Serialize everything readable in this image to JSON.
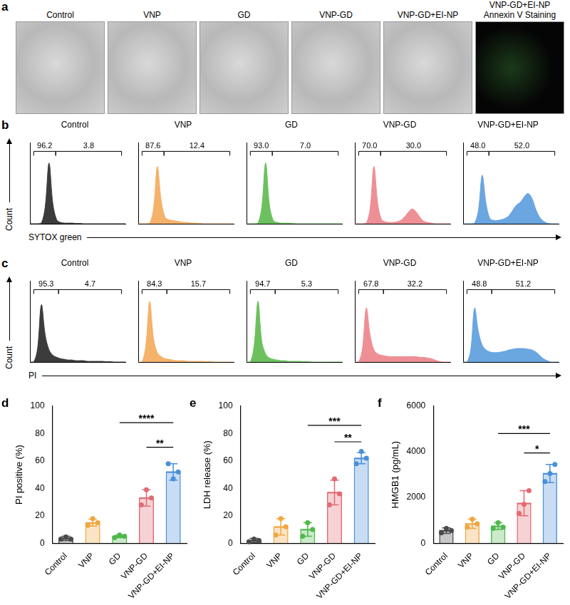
{
  "images": {
    "panel": "a",
    "titles": [
      [
        "Control"
      ],
      [
        "VNP"
      ],
      [
        "GD"
      ],
      [
        "VNP-GD"
      ],
      [
        "VNP-GD+EI-NP"
      ],
      [
        "VNP-GD+EI-NP",
        "Annexin V Staining"
      ]
    ]
  },
  "histogram_rows": [
    {
      "panel": "b",
      "y_label": "Count",
      "x_label": "SYTOX green"
    },
    {
      "panel": "c",
      "y_label": "Count",
      "x_label": "PI"
    }
  ],
  "chart_data": [
    {
      "type": "area",
      "panel": "b",
      "title": "Control",
      "color": "#3c3c3c",
      "tick_labels": false,
      "xlim": [
        0,
        100
      ],
      "ylim": [
        0,
        120
      ],
      "x": [
        0,
        4,
        8,
        12,
        16,
        20,
        24,
        28,
        32,
        36,
        40,
        44,
        48,
        52,
        56,
        60,
        64,
        68,
        72,
        76,
        80,
        84,
        88,
        92,
        96,
        100
      ],
      "values": [
        0,
        0,
        0,
        1,
        25,
        90,
        30,
        6,
        2,
        1,
        1,
        1,
        0.5,
        0.5,
        0,
        0,
        0,
        0,
        0,
        0,
        0,
        0,
        0,
        0,
        0,
        0
      ],
      "gates": [
        {
          "range": [
            4,
            27
          ],
          "value": 96.2
        },
        {
          "range": [
            27,
            96
          ],
          "value": 3.8
        }
      ]
    },
    {
      "type": "area",
      "panel": "b",
      "title": "VNP",
      "color": "#f5b26b",
      "tick_labels": false,
      "xlim": [
        0,
        100
      ],
      "ylim": [
        0,
        120
      ],
      "x": [
        0,
        4,
        8,
        12,
        16,
        20,
        24,
        28,
        32,
        36,
        40,
        44,
        48,
        52,
        56,
        60,
        64,
        68,
        72,
        76,
        80,
        84,
        88,
        92,
        96,
        100
      ],
      "values": [
        0,
        0,
        0,
        1,
        22,
        85,
        35,
        10,
        6,
        5,
        4,
        3,
        2,
        2,
        1,
        1,
        0.5,
        0,
        0,
        0,
        0,
        0,
        0,
        0,
        0,
        0
      ],
      "gates": [
        {
          "range": [
            4,
            27
          ],
          "value": 87.6
        },
        {
          "range": [
            27,
            96
          ],
          "value": 12.4
        }
      ]
    },
    {
      "type": "area",
      "panel": "b",
      "title": "GD",
      "color": "#6cc15e",
      "tick_labels": false,
      "xlim": [
        0,
        100
      ],
      "ylim": [
        0,
        120
      ],
      "x": [
        0,
        4,
        8,
        12,
        16,
        20,
        24,
        28,
        32,
        36,
        40,
        44,
        48,
        52,
        56,
        60,
        64,
        68,
        72,
        76,
        80,
        84,
        88,
        92,
        96,
        100
      ],
      "values": [
        0,
        0,
        0,
        1,
        25,
        90,
        28,
        5,
        2,
        1,
        1,
        1,
        0.5,
        0,
        0,
        0,
        0,
        0,
        0,
        0,
        0,
        0,
        0,
        0,
        0,
        0
      ],
      "gates": [
        {
          "range": [
            4,
            27
          ],
          "value": 93.0
        },
        {
          "range": [
            27,
            96
          ],
          "value": 7.0
        }
      ]
    },
    {
      "type": "area",
      "panel": "b",
      "title": "VNP-GD",
      "color": "#ee8f96",
      "tick_labels": false,
      "xlim": [
        0,
        100
      ],
      "ylim": [
        0,
        120
      ],
      "x": [
        0,
        4,
        8,
        12,
        16,
        20,
        24,
        28,
        32,
        36,
        40,
        44,
        48,
        52,
        56,
        60,
        64,
        68,
        72,
        76,
        80,
        84,
        88,
        92,
        96,
        100
      ],
      "values": [
        0,
        0,
        0,
        1,
        22,
        85,
        30,
        6,
        3,
        2,
        2,
        3,
        5,
        10,
        17,
        22,
        18,
        10,
        4,
        2,
        1,
        0,
        0,
        0,
        0,
        0
      ],
      "gates": [
        {
          "range": [
            4,
            27
          ],
          "value": 70.0
        },
        {
          "range": [
            27,
            96
          ],
          "value": 30.0
        }
      ]
    },
    {
      "type": "area",
      "panel": "b",
      "title": "VNP-GD+EI-NP",
      "color": "#6aa6e0",
      "tick_labels": false,
      "xlim": [
        0,
        100
      ],
      "ylim": [
        0,
        120
      ],
      "x": [
        0,
        4,
        8,
        12,
        16,
        20,
        24,
        28,
        32,
        36,
        40,
        44,
        48,
        52,
        56,
        60,
        64,
        68,
        72,
        76,
        80,
        84,
        88,
        92,
        96,
        100
      ],
      "values": [
        0,
        0,
        0,
        1,
        20,
        72,
        30,
        8,
        5,
        5,
        6,
        8,
        12,
        20,
        28,
        32,
        40,
        45,
        38,
        22,
        10,
        4,
        1,
        0,
        0,
        0
      ],
      "gates": [
        {
          "range": [
            4,
            27
          ],
          "value": 48.0
        },
        {
          "range": [
            27,
            96
          ],
          "value": 52.0
        }
      ]
    },
    {
      "type": "area",
      "panel": "c",
      "title": "Control",
      "color": "#3c3c3c",
      "tick_labels": false,
      "xlim": [
        0,
        100
      ],
      "ylim": [
        0,
        120
      ],
      "x": [
        0,
        4,
        8,
        12,
        16,
        20,
        24,
        28,
        32,
        36,
        40,
        44,
        48,
        52,
        56,
        60,
        64,
        68,
        72,
        76,
        80,
        84,
        88,
        92,
        96,
        100
      ],
      "values": [
        0,
        0,
        20,
        85,
        40,
        18,
        10,
        7,
        5,
        4,
        3,
        3,
        2,
        2,
        2,
        1,
        1,
        1,
        1,
        1,
        0.5,
        0.5,
        0,
        0,
        0,
        0
      ],
      "gates": [
        {
          "range": [
            4,
            30
          ],
          "value": 95.3
        },
        {
          "range": [
            30,
            96
          ],
          "value": 4.7
        }
      ]
    },
    {
      "type": "area",
      "panel": "c",
      "title": "VNP",
      "color": "#f5b26b",
      "tick_labels": false,
      "xlim": [
        0,
        100
      ],
      "ylim": [
        0,
        120
      ],
      "x": [
        0,
        4,
        8,
        12,
        16,
        20,
        24,
        28,
        32,
        36,
        40,
        44,
        48,
        52,
        56,
        60,
        64,
        68,
        72,
        76,
        80,
        84,
        88,
        92,
        96,
        100
      ],
      "values": [
        0,
        0,
        25,
        90,
        35,
        14,
        8,
        5,
        4,
        3,
        2,
        2,
        2,
        1,
        1,
        1,
        1,
        1,
        0.5,
        0.5,
        0,
        0,
        0,
        0,
        0,
        0
      ],
      "gates": [
        {
          "range": [
            4,
            30
          ],
          "value": 84.3
        },
        {
          "range": [
            30,
            96
          ],
          "value": 15.7
        }
      ]
    },
    {
      "type": "area",
      "panel": "c",
      "title": "GD",
      "color": "#6cc15e",
      "tick_labels": false,
      "xlim": [
        0,
        100
      ],
      "ylim": [
        0,
        120
      ],
      "x": [
        0,
        4,
        8,
        12,
        16,
        20,
        24,
        28,
        32,
        36,
        40,
        44,
        48,
        52,
        56,
        60,
        64,
        68,
        72,
        76,
        80,
        84,
        88,
        92,
        96,
        100
      ],
      "values": [
        0,
        0,
        25,
        90,
        30,
        12,
        6,
        4,
        3,
        2,
        2,
        1,
        1,
        1,
        1,
        0.5,
        0.5,
        0,
        0,
        0,
        0,
        0,
        0,
        0,
        0,
        0
      ],
      "gates": [
        {
          "range": [
            4,
            30
          ],
          "value": 94.7
        },
        {
          "range": [
            30,
            96
          ],
          "value": 5.3
        }
      ]
    },
    {
      "type": "area",
      "panel": "c",
      "title": "VNP-GD",
      "color": "#ee8f96",
      "tick_labels": false,
      "xlim": [
        0,
        100
      ],
      "ylim": [
        0,
        120
      ],
      "x": [
        0,
        4,
        8,
        12,
        16,
        20,
        24,
        28,
        32,
        36,
        40,
        44,
        48,
        52,
        56,
        60,
        64,
        68,
        72,
        76,
        80,
        84,
        88,
        92,
        96,
        100
      ],
      "values": [
        0,
        0,
        20,
        80,
        40,
        18,
        12,
        10,
        9,
        8,
        8,
        8,
        8,
        8,
        8,
        8,
        8,
        7,
        7,
        6,
        5,
        3,
        1,
        0,
        0,
        0
      ],
      "gates": [
        {
          "range": [
            4,
            30
          ],
          "value": 67.8
        },
        {
          "range": [
            30,
            96
          ],
          "value": 32.2
        }
      ]
    },
    {
      "type": "area",
      "panel": "c",
      "title": "VNP-GD+EI-NP",
      "color": "#6aa6e0",
      "tick_labels": false,
      "xlim": [
        0,
        100
      ],
      "ylim": [
        0,
        120
      ],
      "x": [
        0,
        4,
        8,
        12,
        16,
        20,
        24,
        28,
        32,
        36,
        40,
        44,
        48,
        52,
        56,
        60,
        64,
        68,
        72,
        76,
        80,
        84,
        88,
        92,
        96,
        100
      ],
      "values": [
        0,
        0,
        18,
        80,
        45,
        25,
        18,
        15,
        14,
        14,
        15,
        16,
        18,
        19,
        20,
        20,
        20,
        19,
        18,
        15,
        10,
        5,
        2,
        0,
        0,
        0
      ],
      "gates": [
        {
          "range": [
            4,
            30
          ],
          "value": 48.8
        },
        {
          "range": [
            30,
            96
          ],
          "value": 51.2
        }
      ]
    },
    {
      "type": "bar",
      "panel": "d",
      "y_label": "PI positive (%)",
      "categories": [
        "Control",
        "VNP",
        "GD",
        "VNP-GD",
        "VNP-GD+EI-NP"
      ],
      "colors": [
        "#4a4a4a",
        "#f0a640",
        "#4fb84c",
        "#e36a72",
        "#4a90d9"
      ],
      "values": [
        3.5,
        15,
        5,
        33,
        52
      ],
      "errors": [
        1.5,
        2.5,
        1,
        6,
        6
      ],
      "points": [
        [
          3,
          4.5,
          3
        ],
        [
          13,
          18,
          15
        ],
        [
          4,
          6,
          5
        ],
        [
          28,
          39,
          33
        ],
        [
          58,
          47,
          52
        ]
      ],
      "ylim": [
        0,
        100
      ],
      "yticks": [
        0,
        20,
        40,
        60,
        80,
        100
      ],
      "significance": [
        {
          "from": "GD",
          "to": "VNP-GD+EI-NP",
          "y": 88,
          "label": "****"
        },
        {
          "from": "VNP-GD",
          "to": "VNP-GD+EI-NP",
          "y": 70,
          "label": "**"
        }
      ]
    },
    {
      "type": "bar",
      "panel": "e",
      "y_label": "LDH release (%)",
      "categories": [
        "Control",
        "VNP",
        "GD",
        "VNP-GD",
        "VNP-GD+EI-NP"
      ],
      "colors": [
        "#4a4a4a",
        "#f0a640",
        "#4fb84c",
        "#e36a72",
        "#4a90d9"
      ],
      "values": [
        2,
        12,
        10,
        37,
        62
      ],
      "errors": [
        1.5,
        6,
        5,
        9,
        4
      ],
      "points": [
        [
          1,
          3,
          2
        ],
        [
          6,
          18,
          12
        ],
        [
          5,
          15,
          10
        ],
        [
          28,
          47,
          36
        ],
        [
          58,
          67,
          62
        ]
      ],
      "ylim": [
        0,
        100
      ],
      "yticks": [
        0,
        20,
        40,
        60,
        80,
        100
      ],
      "significance": [
        {
          "from": "GD",
          "to": "VNP-GD+EI-NP",
          "y": 86,
          "label": "***"
        },
        {
          "from": "VNP-GD",
          "to": "VNP-GD+EI-NP",
          "y": 74,
          "label": "**"
        }
      ]
    },
    {
      "type": "bar",
      "panel": "f",
      "y_label": "HMGB1 (pg/mL)",
      "categories": [
        "Control",
        "VNP",
        "GD",
        "VNP-GD",
        "VNP-GD+EI-NP"
      ],
      "colors": [
        "#4a4a4a",
        "#f0a640",
        "#4fb84c",
        "#e36a72",
        "#4a90d9"
      ],
      "values": [
        550,
        850,
        750,
        1750,
        3050
      ],
      "errors": [
        120,
        200,
        150,
        550,
        400
      ],
      "points": [
        [
          450,
          650,
          550
        ],
        [
          700,
          1050,
          850
        ],
        [
          650,
          900,
          700
        ],
        [
          1300,
          1700,
          2300
        ],
        [
          2700,
          3050,
          3450
        ]
      ],
      "ylim": [
        0,
        6000
      ],
      "yticks": [
        0,
        2000,
        4000,
        6000
      ],
      "significance": [
        {
          "from": "GD",
          "to": "VNP-GD+EI-NP",
          "y": 4800,
          "label": "***"
        },
        {
          "from": "VNP-GD",
          "to": "VNP-GD+EI-NP",
          "y": 3950,
          "label": "*"
        }
      ]
    }
  ]
}
